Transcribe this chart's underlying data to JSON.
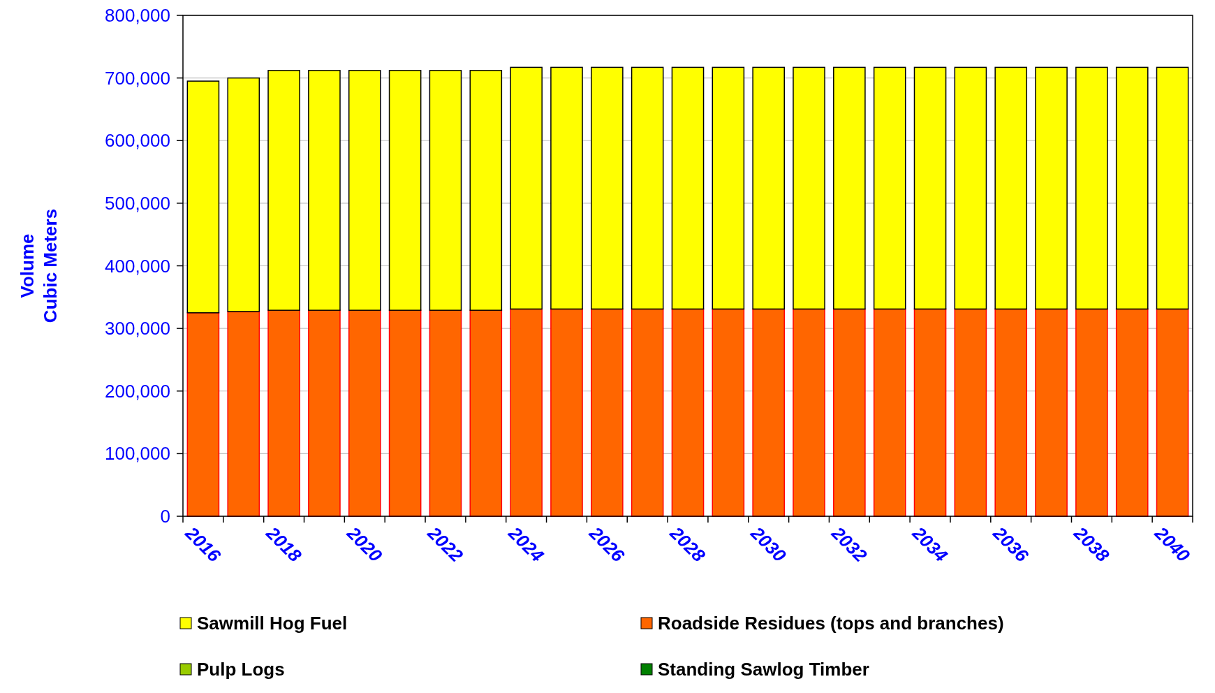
{
  "chart_data": {
    "type": "bar",
    "stacked": true,
    "ylabel": "Volume\nCubic Meters",
    "categories": [
      "2016",
      null,
      "2018",
      null,
      "2020",
      null,
      "2022",
      null,
      "2024",
      null,
      "2026",
      null,
      "2028",
      null,
      "2030",
      null,
      "2032",
      null,
      "2034",
      null,
      "2036",
      null,
      "2038",
      null,
      "2040"
    ],
    "series": [
      {
        "name": "Standing Sawlog Timber",
        "color": "#008000",
        "values": [
          0,
          0,
          0,
          0,
          0,
          0,
          0,
          0,
          0,
          0,
          0,
          0,
          0,
          0,
          0,
          0,
          0,
          0,
          0,
          0,
          0,
          0,
          0,
          0,
          0
        ]
      },
      {
        "name": "Pulp Logs",
        "color": "#99cc00",
        "values": [
          0,
          0,
          0,
          0,
          0,
          0,
          0,
          0,
          0,
          0,
          0,
          0,
          0,
          0,
          0,
          0,
          0,
          0,
          0,
          0,
          0,
          0,
          0,
          0,
          0
        ]
      },
      {
        "name": "Roadside Residues (tops and branches)",
        "color": "#ff6600",
        "values": [
          325000,
          327000,
          329000,
          329000,
          329000,
          329000,
          329000,
          329000,
          331000,
          331000,
          331000,
          331000,
          331000,
          331000,
          331000,
          331000,
          331000,
          331000,
          331000,
          331000,
          331000,
          331000,
          331000,
          331000,
          331000
        ]
      },
      {
        "name": "Sawmill Hog Fuel",
        "color": "#ffff00",
        "values": [
          370000,
          373000,
          383000,
          383000,
          383000,
          383000,
          383000,
          383000,
          386000,
          386000,
          386000,
          386000,
          386000,
          386000,
          386000,
          386000,
          386000,
          386000,
          386000,
          386000,
          386000,
          386000,
          386000,
          386000,
          386000
        ]
      }
    ],
    "ylim": [
      0,
      800000
    ],
    "yticks": [
      {
        "value": 0,
        "label": "0"
      },
      {
        "value": 100000,
        "label": "100,000"
      },
      {
        "value": 200000,
        "label": "200,000"
      },
      {
        "value": 300000,
        "label": "300,000"
      },
      {
        "value": 400000,
        "label": "400,000"
      },
      {
        "value": 500000,
        "label": "500,000"
      },
      {
        "value": 600000,
        "label": "600,000"
      },
      {
        "value": 700000,
        "label": "700,000"
      },
      {
        "value": 800000,
        "label": "800,000"
      }
    ],
    "grid": "y",
    "legend": "bottom"
  }
}
